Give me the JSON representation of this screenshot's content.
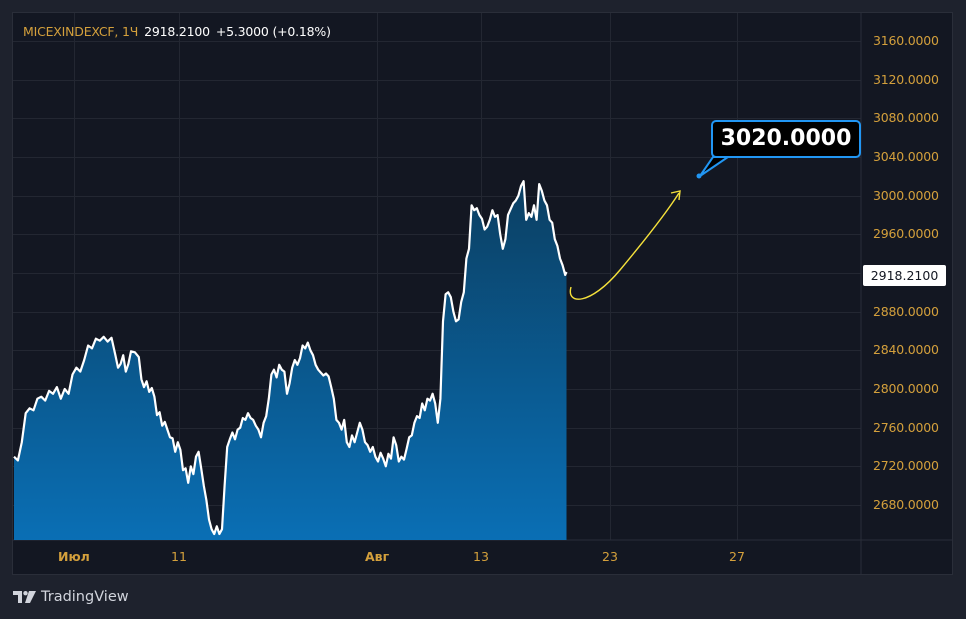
{
  "header": {
    "symbol": "MICEXINDEXCF, 1Ч",
    "last_price": "2918.2100",
    "change": "+5.3000 (+0.18%)"
  },
  "price_axis": {
    "ticks": [
      "3160.0000",
      "3120.0000",
      "3080.0000",
      "3040.0000",
      "3000.0000",
      "2960.0000",
      "2880.0000",
      "2840.0000",
      "2800.0000",
      "2760.0000",
      "2720.0000",
      "2680.0000"
    ],
    "current_price_label": "2918.2100"
  },
  "time_axis": {
    "ticks": [
      {
        "label": "Июл",
        "bold": true
      },
      {
        "label": "11",
        "bold": false
      },
      {
        "label": "Авг",
        "bold": true
      },
      {
        "label": "13",
        "bold": false
      },
      {
        "label": "23",
        "bold": false
      },
      {
        "label": "27",
        "bold": false
      }
    ]
  },
  "annotation": {
    "callout_text": "3020.0000",
    "arrow_color": "#f5e13b",
    "callout_border_color": "#2196f3"
  },
  "branding": {
    "label": "TradingView"
  },
  "colors": {
    "background": "#1e222d",
    "pane": "#131722",
    "line": "#ffffff",
    "area_top": "#0b4266",
    "area_bottom": "#0a6eb4",
    "axis_text": "#d4a03c",
    "grid": "#262a35"
  },
  "chart_data": {
    "type": "area",
    "title": "MICEXINDEXCF, 1Ч",
    "xlabel": "",
    "ylabel": "",
    "ylim": [
      2650,
      3180
    ],
    "x_ticks": [
      "Июл",
      "11",
      "Авг",
      "13",
      "23",
      "27"
    ],
    "grid": true,
    "series": [
      {
        "name": "MICEXINDEXCF",
        "points": [
          [
            0,
            2730
          ],
          [
            3,
            2726
          ],
          [
            6,
            2745
          ],
          [
            9,
            2775
          ],
          [
            12,
            2780
          ],
          [
            15,
            2778
          ],
          [
            18,
            2790
          ],
          [
            21,
            2792
          ],
          [
            24,
            2788
          ],
          [
            27,
            2798
          ],
          [
            30,
            2795
          ],
          [
            33,
            2802
          ],
          [
            36,
            2790
          ],
          [
            39,
            2800
          ],
          [
            42,
            2795
          ],
          [
            45,
            2815
          ],
          [
            48,
            2822
          ],
          [
            51,
            2818
          ],
          [
            54,
            2830
          ],
          [
            57,
            2845
          ],
          [
            60,
            2842
          ],
          [
            63,
            2852
          ],
          [
            66,
            2850
          ],
          [
            69,
            2854
          ],
          [
            72,
            2849
          ],
          [
            75,
            2853
          ],
          [
            78,
            2835
          ],
          [
            80,
            2822
          ],
          [
            82,
            2826
          ],
          [
            84,
            2835
          ],
          [
            86,
            2818
          ],
          [
            88,
            2826
          ],
          [
            90,
            2839
          ],
          [
            93,
            2838
          ],
          [
            96,
            2833
          ],
          [
            98,
            2810
          ],
          [
            100,
            2802
          ],
          [
            102,
            2808
          ],
          [
            104,
            2797
          ],
          [
            106,
            2801
          ],
          [
            108,
            2792
          ],
          [
            110,
            2773
          ],
          [
            112,
            2776
          ],
          [
            114,
            2762
          ],
          [
            116,
            2766
          ],
          [
            118,
            2758
          ],
          [
            120,
            2750
          ],
          [
            122,
            2749
          ],
          [
            124,
            2735
          ],
          [
            126,
            2745
          ],
          [
            128,
            2737
          ],
          [
            130,
            2716
          ],
          [
            132,
            2718
          ],
          [
            134,
            2703
          ],
          [
            136,
            2720
          ],
          [
            138,
            2712
          ],
          [
            140,
            2730
          ],
          [
            142,
            2735
          ],
          [
            144,
            2718
          ],
          [
            146,
            2700
          ],
          [
            148,
            2685
          ],
          [
            150,
            2665
          ],
          [
            152,
            2655
          ],
          [
            154,
            2650
          ],
          [
            156,
            2658
          ],
          [
            158,
            2650
          ],
          [
            160,
            2655
          ],
          [
            162,
            2700
          ],
          [
            164,
            2740
          ],
          [
            166,
            2748
          ],
          [
            168,
            2755
          ],
          [
            170,
            2748
          ],
          [
            172,
            2758
          ],
          [
            174,
            2760
          ],
          [
            176,
            2770
          ],
          [
            178,
            2768
          ],
          [
            180,
            2775
          ],
          [
            182,
            2770
          ],
          [
            184,
            2768
          ],
          [
            186,
            2762
          ],
          [
            188,
            2758
          ],
          [
            190,
            2750
          ],
          [
            192,
            2765
          ],
          [
            194,
            2772
          ],
          [
            196,
            2790
          ],
          [
            198,
            2815
          ],
          [
            200,
            2820
          ],
          [
            202,
            2812
          ],
          [
            204,
            2825
          ],
          [
            206,
            2820
          ],
          [
            208,
            2818
          ],
          [
            210,
            2795
          ],
          [
            212,
            2806
          ],
          [
            214,
            2822
          ],
          [
            216,
            2830
          ],
          [
            218,
            2825
          ],
          [
            220,
            2832
          ],
          [
            222,
            2845
          ],
          [
            224,
            2842
          ],
          [
            226,
            2848
          ],
          [
            228,
            2840
          ],
          [
            230,
            2835
          ],
          [
            232,
            2825
          ],
          [
            234,
            2820
          ],
          [
            236,
            2817
          ],
          [
            238,
            2814
          ],
          [
            240,
            2816
          ],
          [
            242,
            2813
          ],
          [
            244,
            2802
          ],
          [
            246,
            2790
          ],
          [
            248,
            2768
          ],
          [
            250,
            2765
          ],
          [
            252,
            2758
          ],
          [
            254,
            2768
          ],
          [
            256,
            2745
          ],
          [
            258,
            2740
          ],
          [
            260,
            2752
          ],
          [
            262,
            2745
          ],
          [
            264,
            2755
          ],
          [
            266,
            2765
          ],
          [
            268,
            2758
          ],
          [
            270,
            2745
          ],
          [
            272,
            2742
          ],
          [
            274,
            2735
          ],
          [
            276,
            2740
          ],
          [
            278,
            2730
          ],
          [
            280,
            2725
          ],
          [
            282,
            2734
          ],
          [
            284,
            2728
          ],
          [
            286,
            2720
          ],
          [
            288,
            2733
          ],
          [
            290,
            2728
          ],
          [
            292,
            2750
          ],
          [
            294,
            2742
          ],
          [
            296,
            2725
          ],
          [
            298,
            2730
          ],
          [
            300,
            2727
          ],
          [
            302,
            2738
          ],
          [
            304,
            2750
          ],
          [
            306,
            2752
          ],
          [
            308,
            2765
          ],
          [
            310,
            2772
          ],
          [
            312,
            2770
          ],
          [
            314,
            2785
          ],
          [
            316,
            2778
          ],
          [
            318,
            2790
          ],
          [
            320,
            2788
          ],
          [
            322,
            2795
          ],
          [
            324,
            2785
          ],
          [
            326,
            2765
          ],
          [
            328,
            2790
          ],
          [
            330,
            2870
          ],
          [
            332,
            2898
          ],
          [
            334,
            2900
          ],
          [
            336,
            2895
          ],
          [
            338,
            2880
          ],
          [
            340,
            2870
          ],
          [
            342,
            2872
          ],
          [
            344,
            2890
          ],
          [
            346,
            2900
          ],
          [
            348,
            2935
          ],
          [
            350,
            2945
          ],
          [
            352,
            2990
          ],
          [
            354,
            2985
          ],
          [
            356,
            2987
          ],
          [
            358,
            2980
          ],
          [
            360,
            2976
          ],
          [
            362,
            2965
          ],
          [
            364,
            2968
          ],
          [
            366,
            2975
          ],
          [
            368,
            2985
          ],
          [
            370,
            2978
          ],
          [
            372,
            2980
          ],
          [
            374,
            2960
          ],
          [
            376,
            2945
          ],
          [
            378,
            2955
          ],
          [
            380,
            2980
          ],
          [
            382,
            2986
          ],
          [
            384,
            2992
          ],
          [
            386,
            2995
          ],
          [
            388,
            3000
          ],
          [
            390,
            3010
          ],
          [
            392,
            3015
          ],
          [
            394,
            2975
          ],
          [
            396,
            2982
          ],
          [
            398,
            2978
          ],
          [
            400,
            2990
          ],
          [
            402,
            2975
          ],
          [
            404,
            3012
          ],
          [
            406,
            3005
          ],
          [
            408,
            2995
          ],
          [
            410,
            2990
          ],
          [
            412,
            2975
          ],
          [
            414,
            2972
          ],
          [
            416,
            2955
          ],
          [
            418,
            2948
          ],
          [
            420,
            2935
          ],
          [
            422,
            2928
          ],
          [
            424,
            2918
          ],
          [
            425,
            2921
          ]
        ]
      }
    ],
    "annotations": [
      {
        "type": "curved_arrow",
        "from": [
          428,
          2905
        ],
        "to": [
          515,
          3005
        ],
        "color": "#f5e13b"
      },
      {
        "type": "callout",
        "text": "3020.0000",
        "anchor": [
          534,
          3020
        ]
      }
    ]
  }
}
